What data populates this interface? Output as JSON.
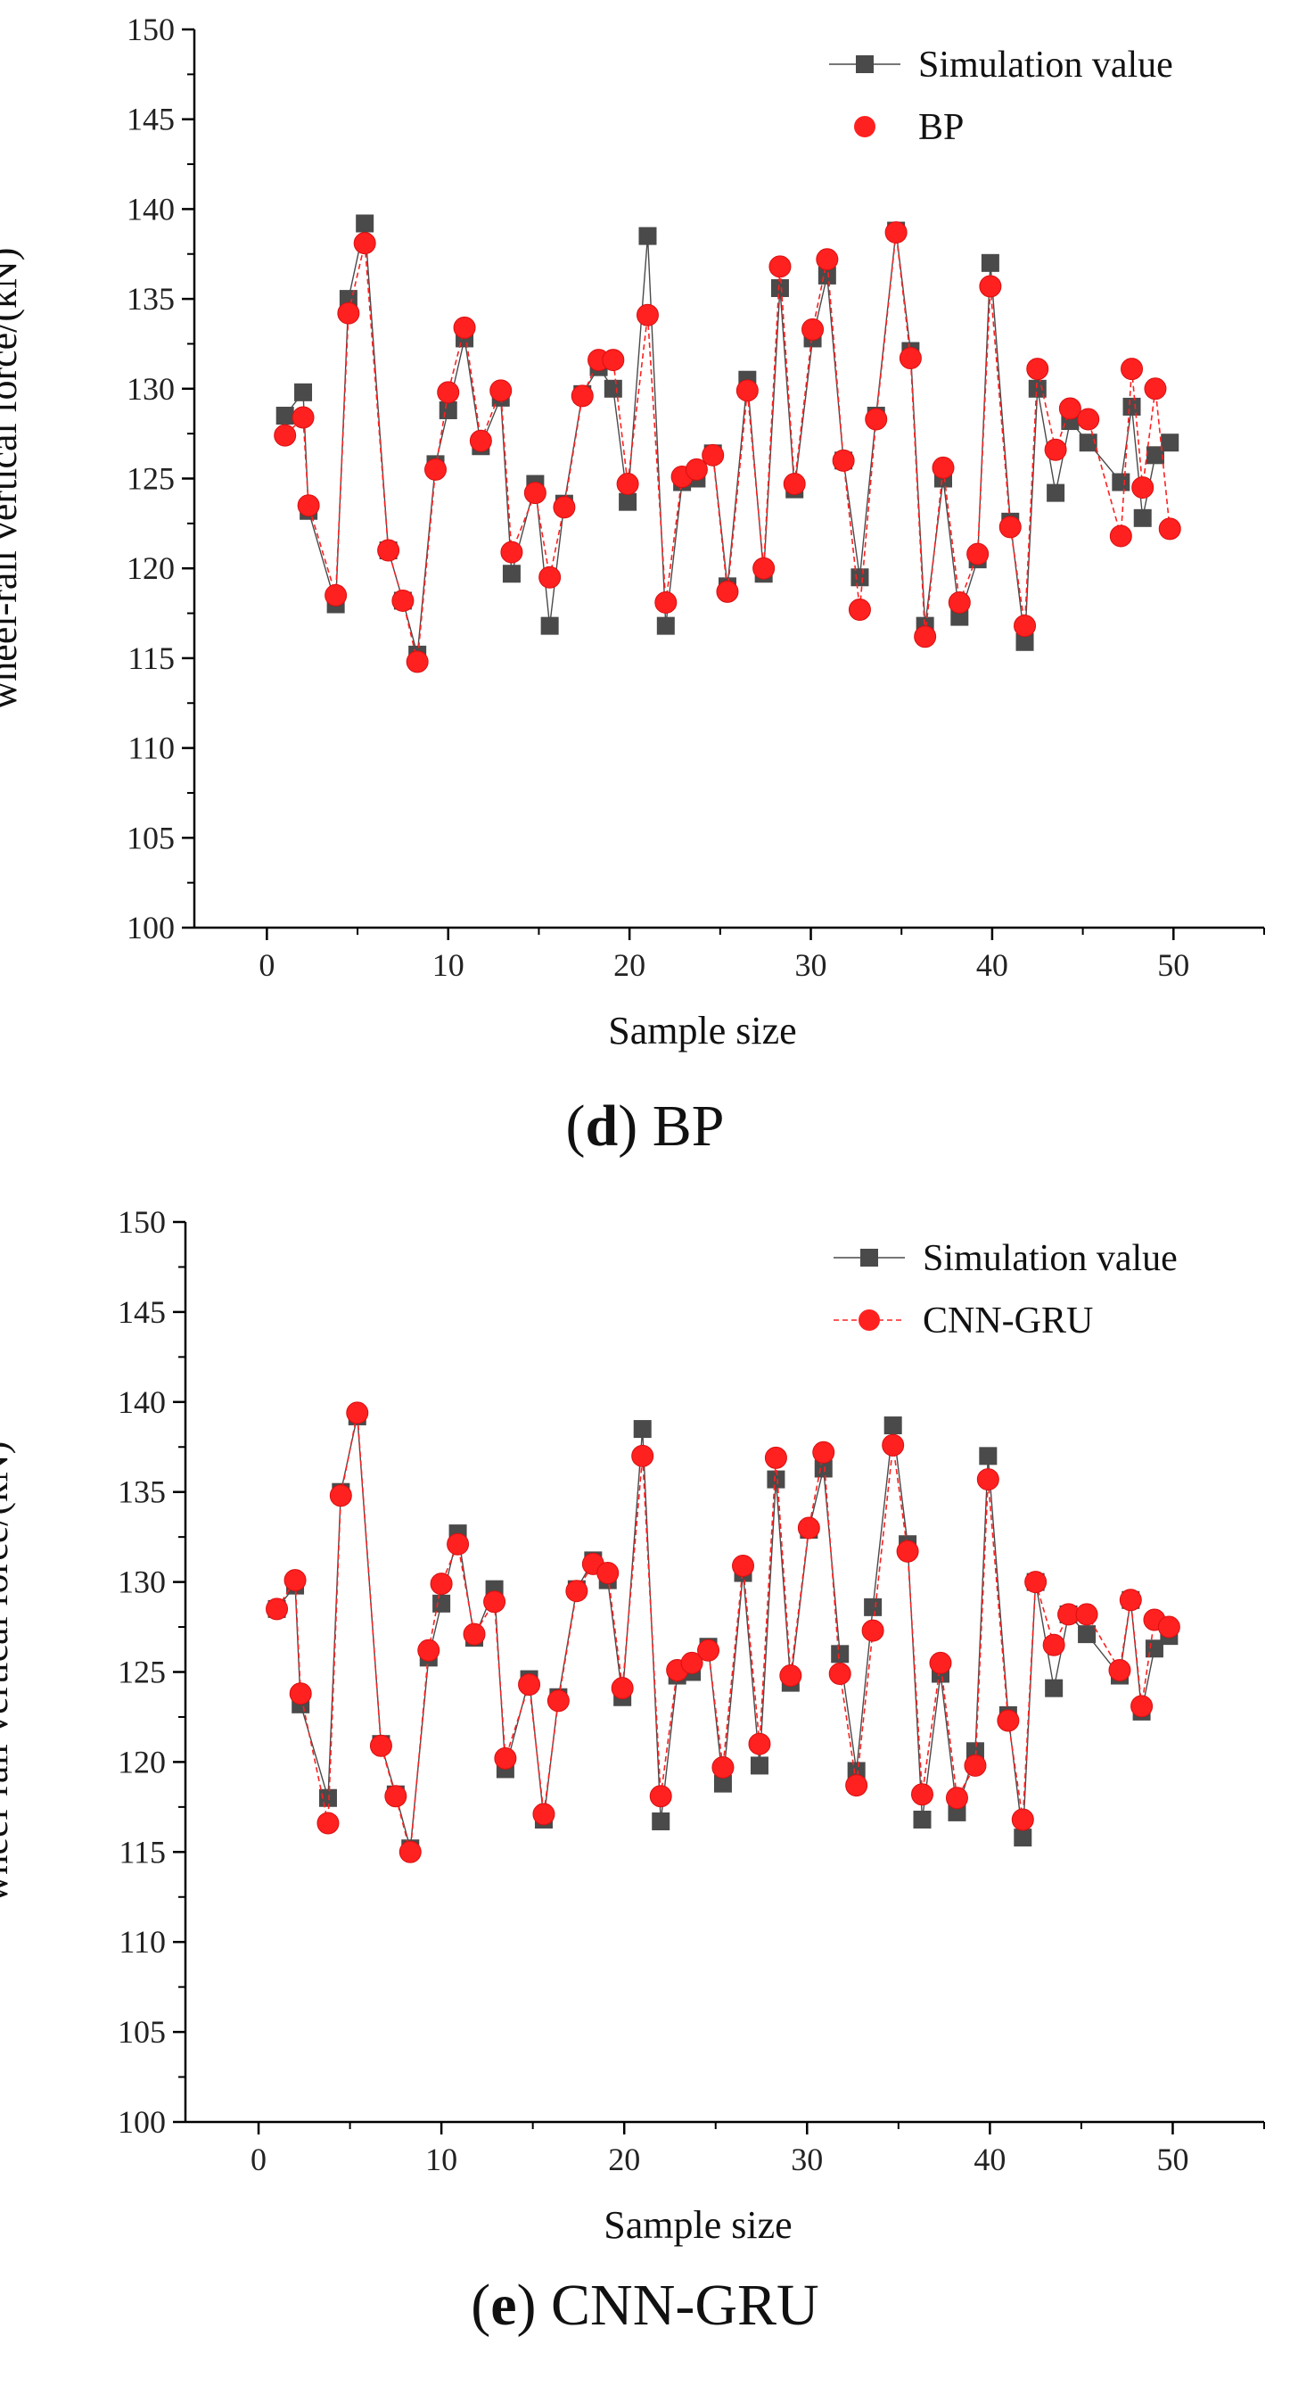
{
  "chart_data": [
    {
      "type": "line",
      "panel_letter": "d",
      "panel_name": "BP",
      "xlabel": "Sample size",
      "ylabel": "wheel-rail vertical force/(kN)",
      "xlim": [
        -4,
        55
      ],
      "ylim": [
        100,
        150
      ],
      "xticks": [
        0,
        10,
        20,
        30,
        40,
        50
      ],
      "yticks": [
        100,
        105,
        110,
        115,
        120,
        125,
        130,
        135,
        140,
        145,
        150
      ],
      "legend_position": "top-right",
      "x": [
        1,
        2,
        2.3,
        3.8,
        4.5,
        5.4,
        6.7,
        7.5,
        8.3,
        9.3,
        10,
        10.9,
        11.8,
        12.9,
        13.5,
        14.8,
        15.6,
        16.4,
        17.4,
        18.3,
        19.1,
        19.9,
        21,
        22,
        22.9,
        23.7,
        24.6,
        25.4,
        26.5,
        27.4,
        28.3,
        29.1,
        30.1,
        30.9,
        31.8,
        32.7,
        33.6,
        34.7,
        35.5,
        36.3,
        37.3,
        38.2,
        39.2,
        39.9,
        41,
        41.8,
        42.5,
        43.5,
        44.3,
        45.3,
        47.1,
        47.7,
        48.3,
        49,
        49.8
      ],
      "series": [
        {
          "name": "Simulation value",
          "marker": "square",
          "line": "solid",
          "color": "#4a4a4a",
          "values": [
            128.5,
            129.8,
            123.2,
            118,
            135,
            139.2,
            121,
            118.2,
            115.2,
            125.8,
            128.8,
            132.8,
            126.8,
            129.5,
            119.7,
            124.7,
            116.8,
            123.6,
            129.7,
            131.2,
            130,
            123.7,
            138.5,
            116.8,
            124.8,
            125,
            126.4,
            119,
            130.5,
            119.7,
            135.6,
            124.4,
            132.8,
            136.3,
            126,
            119.5,
            128.5,
            138.8,
            132.1,
            116.8,
            125,
            117.3,
            120.5,
            137,
            122.6,
            115.9,
            130,
            124.2,
            128.2,
            127,
            124.8,
            129,
            122.8,
            126.3,
            127
          ]
        },
        {
          "name": "BP",
          "marker": "circle",
          "line": "dashed",
          "color": "#ff2020",
          "values": [
            127.4,
            128.4,
            123.5,
            118.5,
            134.2,
            138.1,
            121,
            118.2,
            114.8,
            125.5,
            129.8,
            133.4,
            127.1,
            129.9,
            120.9,
            124.2,
            119.5,
            123.4,
            129.6,
            131.6,
            131.6,
            124.7,
            134.1,
            118.1,
            125.1,
            125.5,
            126.3,
            118.7,
            129.9,
            120,
            136.8,
            124.7,
            133.3,
            137.2,
            126,
            117.7,
            128.3,
            138.7,
            131.7,
            116.2,
            125.6,
            118.1,
            120.8,
            135.7,
            122.3,
            116.8,
            131.1,
            126.6,
            128.9,
            128.3,
            121.8,
            131.1,
            124.5,
            130,
            122.2
          ]
        }
      ]
    },
    {
      "type": "line",
      "panel_letter": "e",
      "panel_name": "CNN-GRU",
      "xlabel": "Sample size",
      "ylabel": "wheel-rail vertical force/(kN)",
      "xlim": [
        -4,
        55
      ],
      "ylim": [
        100,
        150
      ],
      "xticks": [
        0,
        10,
        20,
        30,
        40,
        50
      ],
      "yticks": [
        100,
        105,
        110,
        115,
        120,
        125,
        130,
        135,
        140,
        145,
        150
      ],
      "legend_position": "top-right",
      "x": [
        1,
        2,
        2.3,
        3.8,
        4.5,
        5.4,
        6.7,
        7.5,
        8.3,
        9.3,
        10,
        10.9,
        11.8,
        12.9,
        13.5,
        14.8,
        15.6,
        16.4,
        17.4,
        18.3,
        19.1,
        19.9,
        21,
        22,
        22.9,
        23.7,
        24.6,
        25.4,
        26.5,
        27.4,
        28.3,
        29.1,
        30.1,
        30.9,
        31.8,
        32.7,
        33.6,
        34.7,
        35.5,
        36.3,
        37.3,
        38.2,
        39.2,
        39.9,
        41,
        41.8,
        42.5,
        43.5,
        44.3,
        45.3,
        47.1,
        47.7,
        48.3,
        49,
        49.8
      ],
      "series": [
        {
          "name": "Simulation value",
          "marker": "square",
          "line": "solid",
          "color": "#4a4a4a",
          "values": [
            128.5,
            129.8,
            123.2,
            118,
            135,
            139.2,
            121,
            118.2,
            115.2,
            125.8,
            128.8,
            132.7,
            126.9,
            129.6,
            119.6,
            124.6,
            116.8,
            123.6,
            129.6,
            131.2,
            130.1,
            123.6,
            138.5,
            116.7,
            124.8,
            125,
            126.4,
            118.8,
            130.5,
            119.8,
            135.7,
            124.4,
            132.9,
            136.3,
            126,
            119.5,
            128.6,
            138.7,
            132.1,
            116.8,
            124.9,
            117.2,
            120.6,
            137,
            122.6,
            115.8,
            130,
            124.1,
            128.2,
            127.1,
            124.8,
            129,
            122.8,
            126.3,
            127
          ]
        },
        {
          "name": "CNN-GRU",
          "marker": "circle",
          "line": "dashed",
          "color": "#ff2020",
          "values": [
            128.5,
            130.1,
            123.8,
            116.6,
            134.8,
            139.4,
            120.9,
            118.1,
            115,
            126.2,
            129.9,
            132.1,
            127.1,
            128.9,
            120.2,
            124.3,
            117.1,
            123.4,
            129.5,
            131,
            130.5,
            124.1,
            137,
            118.1,
            125.1,
            125.5,
            126.2,
            119.7,
            130.9,
            121,
            136.9,
            124.8,
            133,
            137.2,
            124.9,
            118.7,
            127.3,
            137.6,
            131.7,
            118.2,
            125.5,
            118,
            119.8,
            135.7,
            122.3,
            116.8,
            130,
            126.5,
            128.2,
            128.2,
            125.1,
            129,
            123.1,
            127.9,
            127.5
          ]
        }
      ]
    }
  ]
}
